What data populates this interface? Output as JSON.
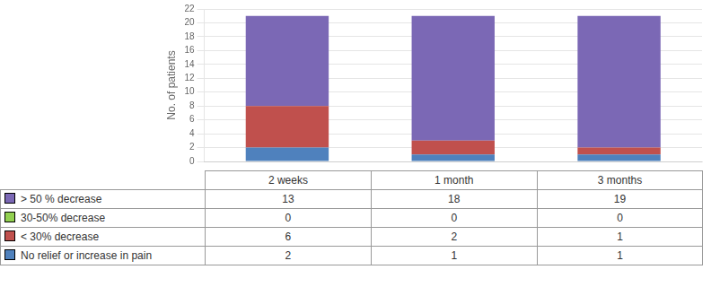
{
  "chart_data": {
    "type": "bar",
    "stacked": true,
    "categories": [
      "2 weeks",
      "1 month",
      "3 months"
    ],
    "series": [
      {
        "name": "No relief or increase in pain",
        "color": "#4F81BD",
        "values": [
          2,
          1,
          1
        ]
      },
      {
        "name": "< 30% decrease",
        "color": "#C0504D",
        "values": [
          6,
          2,
          1
        ]
      },
      {
        "name": "30-50% decrease",
        "color": "#92D050",
        "values": [
          0,
          0,
          0
        ]
      },
      {
        "name": "> 50 % decrease",
        "color": "#7B68B5",
        "values": [
          13,
          18,
          19
        ]
      }
    ],
    "ylabel": "No. of patients",
    "ylim": [
      0,
      22
    ],
    "yticks": [
      0,
      2,
      4,
      6,
      8,
      10,
      12,
      14,
      16,
      18,
      20,
      22
    ],
    "grid": true,
    "tick_labels": "y",
    "legend": "bottom"
  }
}
